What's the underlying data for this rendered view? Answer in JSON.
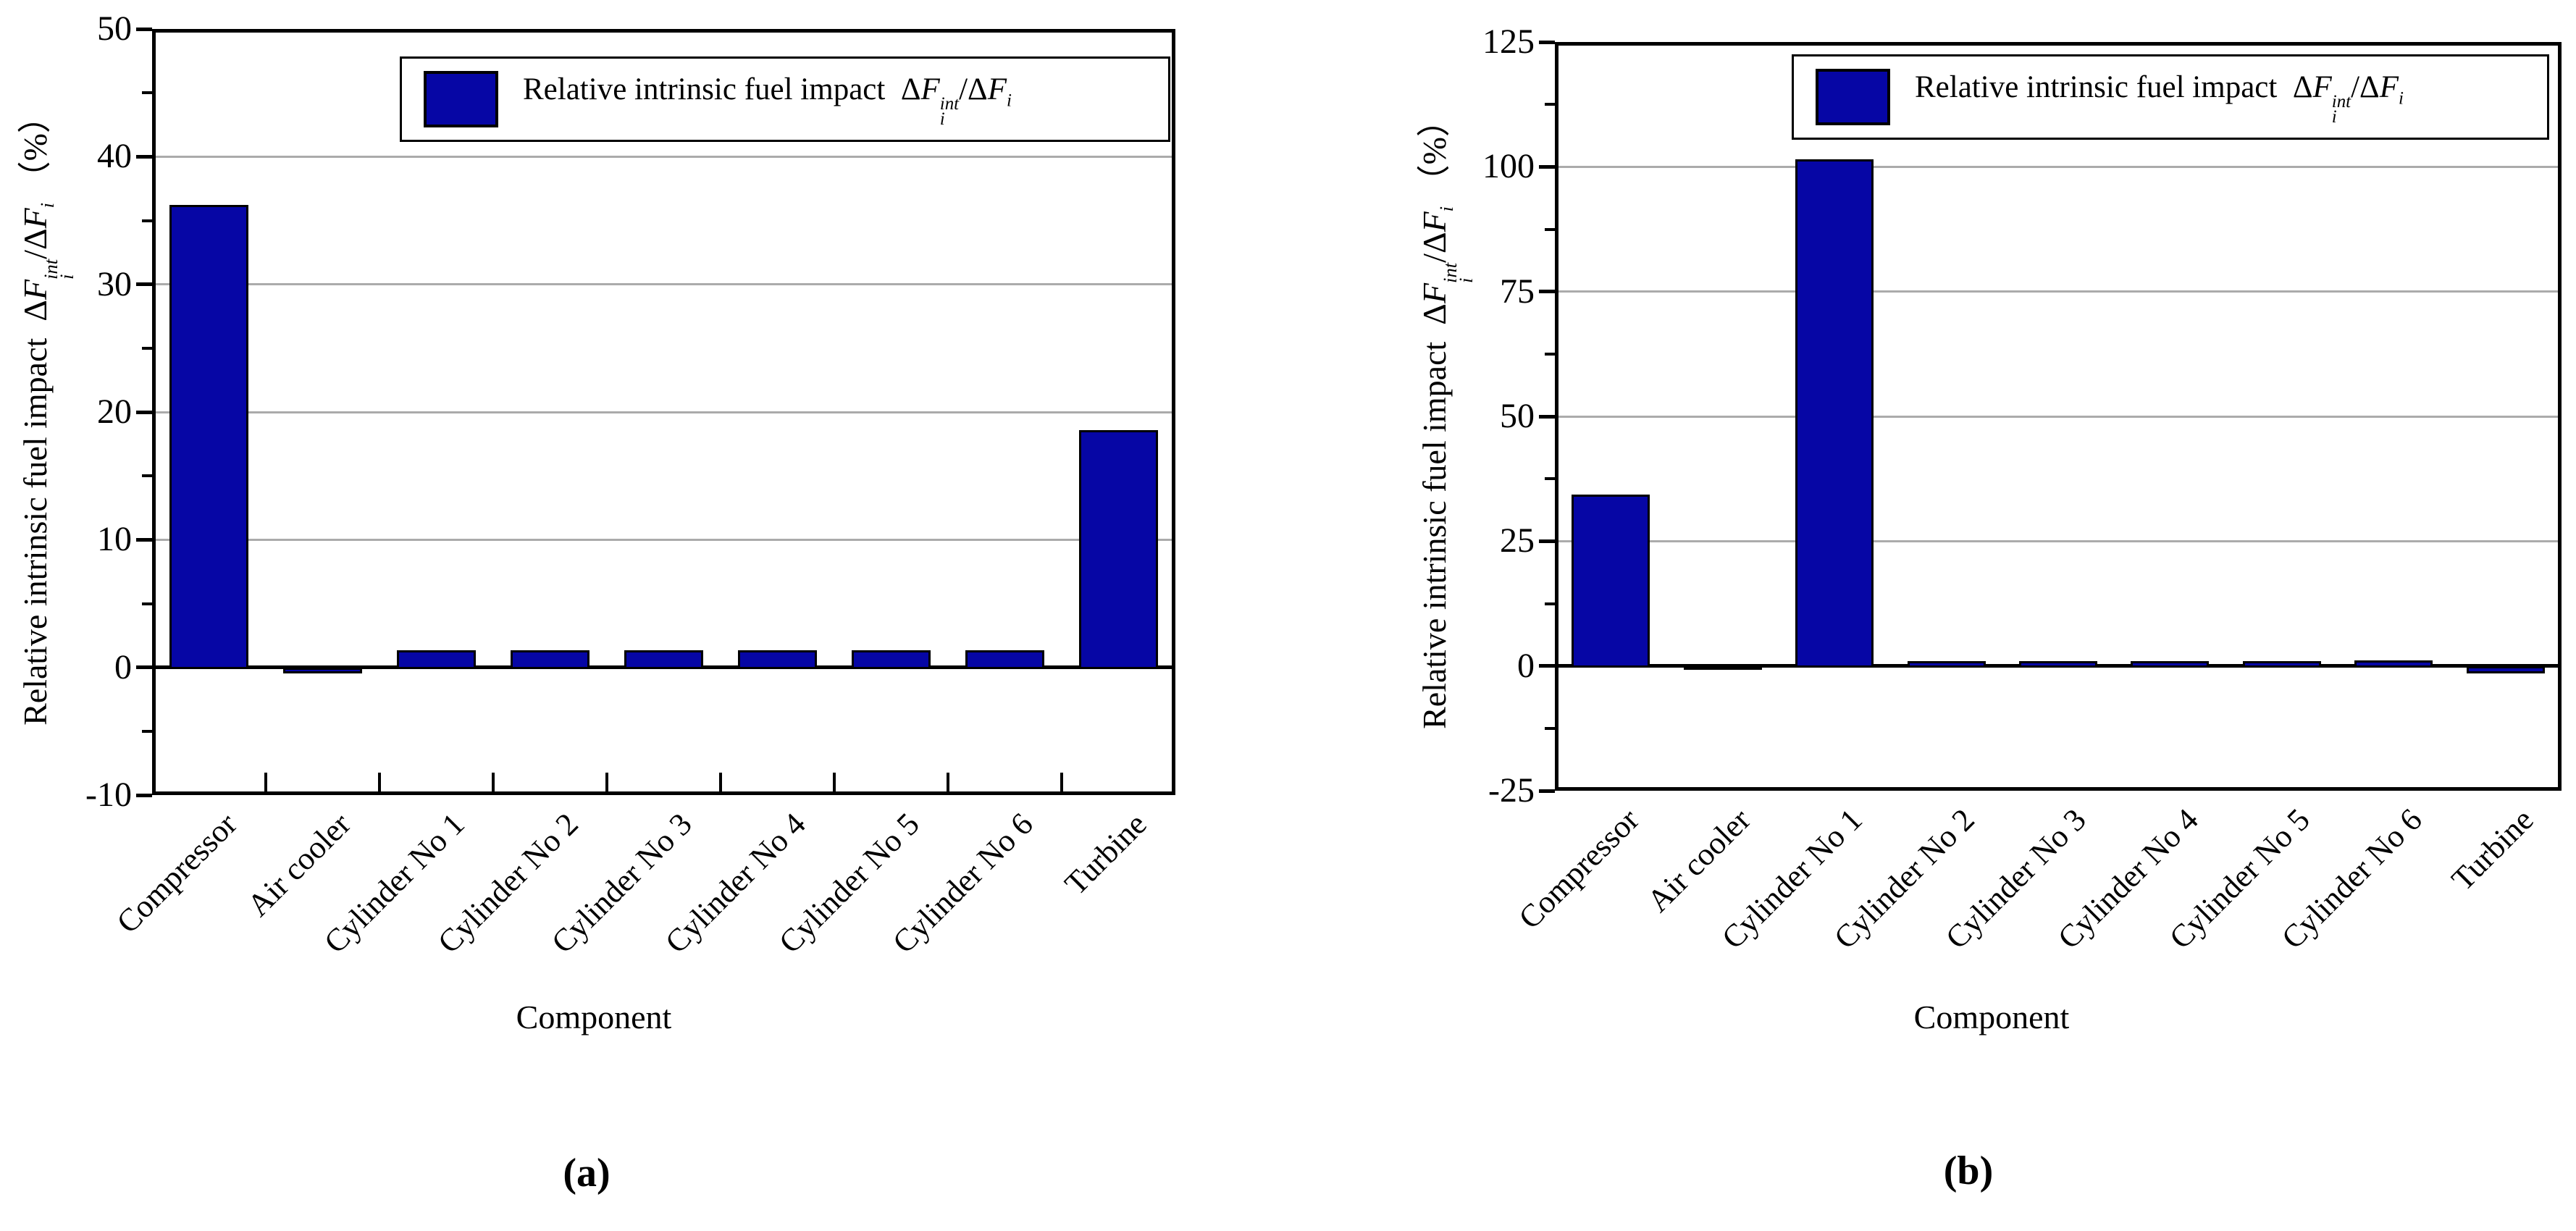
{
  "figure": {
    "background": "#ffffff",
    "xlabel": "Component",
    "ylabel_prefix": "Relative intrinsic fuel impact",
    "legend_prefix": "Relative intrinsic fuel impact",
    "formula": {
      "dF": "ΔF",
      "sup": "int",
      "sub": "i",
      "slash": "/",
      "percent": "（%）"
    },
    "colors": {
      "bar": "#0606A5",
      "bar_border": "#000000",
      "grid": "#ABABAB",
      "axis": "#000000",
      "legend_bg": "#ffffff"
    }
  },
  "chart_data": [
    {
      "type": "bar",
      "id": "a",
      "caption": "(a)",
      "title": "",
      "xlabel": "Component",
      "ylabel": "Relative intrinsic fuel impact ΔF_i^int/ΔF_i （%）",
      "legend_entry": "Relative intrinsic fuel impact ΔF_i^int/ΔF_i",
      "legend_position": "top-right-inside",
      "grid": "horizontal-major",
      "categories": [
        "Compressor",
        "Air cooler",
        "Cylinder No 1",
        "Cylinder No 2",
        "Cylinder No 3",
        "Cylinder No 4",
        "Cylinder No 5",
        "Cylinder No 6",
        "Turbine"
      ],
      "values": [
        36.2,
        -0.5,
        1.35,
        1.35,
        1.35,
        1.35,
        1.35,
        1.35,
        18.6
      ],
      "ylim": [
        -10,
        50
      ],
      "yticks_major": [
        -10,
        0,
        10,
        20,
        30,
        40,
        50
      ],
      "yticks_minor": [
        -5,
        5,
        15,
        25,
        35,
        45
      ],
      "gridline_values": [
        10,
        20,
        30,
        40
      ],
      "x_boundary_ticks": true
    },
    {
      "type": "bar",
      "id": "b",
      "caption": "(b)",
      "title": "",
      "xlabel": "Component",
      "ylabel": "Relative intrinsic fuel impact ΔF_i^int/ΔF_i （%）",
      "legend_entry": "Relative intrinsic fuel impact ΔF_i^int/ΔF_i",
      "legend_position": "top-right-inside",
      "grid": "horizontal-major",
      "categories": [
        "Compressor",
        "Air cooler",
        "Cylinder No 1",
        "Cylinder No 2",
        "Cylinder No 3",
        "Cylinder No 4",
        "Cylinder No 5",
        "Cylinder No 6",
        "Turbine"
      ],
      "values": [
        34.3,
        0.15,
        101.5,
        1.0,
        1.0,
        1.0,
        1.0,
        1.1,
        -1.5
      ],
      "ylim": [
        -25,
        125
      ],
      "yticks_major": [
        -25,
        0,
        25,
        50,
        75,
        100,
        125
      ],
      "yticks_minor": [
        -12.5,
        12.5,
        37.5,
        62.5,
        87.5,
        112.5
      ],
      "gridline_values": [
        25,
        50,
        75,
        100
      ],
      "x_boundary_ticks": false
    }
  ]
}
